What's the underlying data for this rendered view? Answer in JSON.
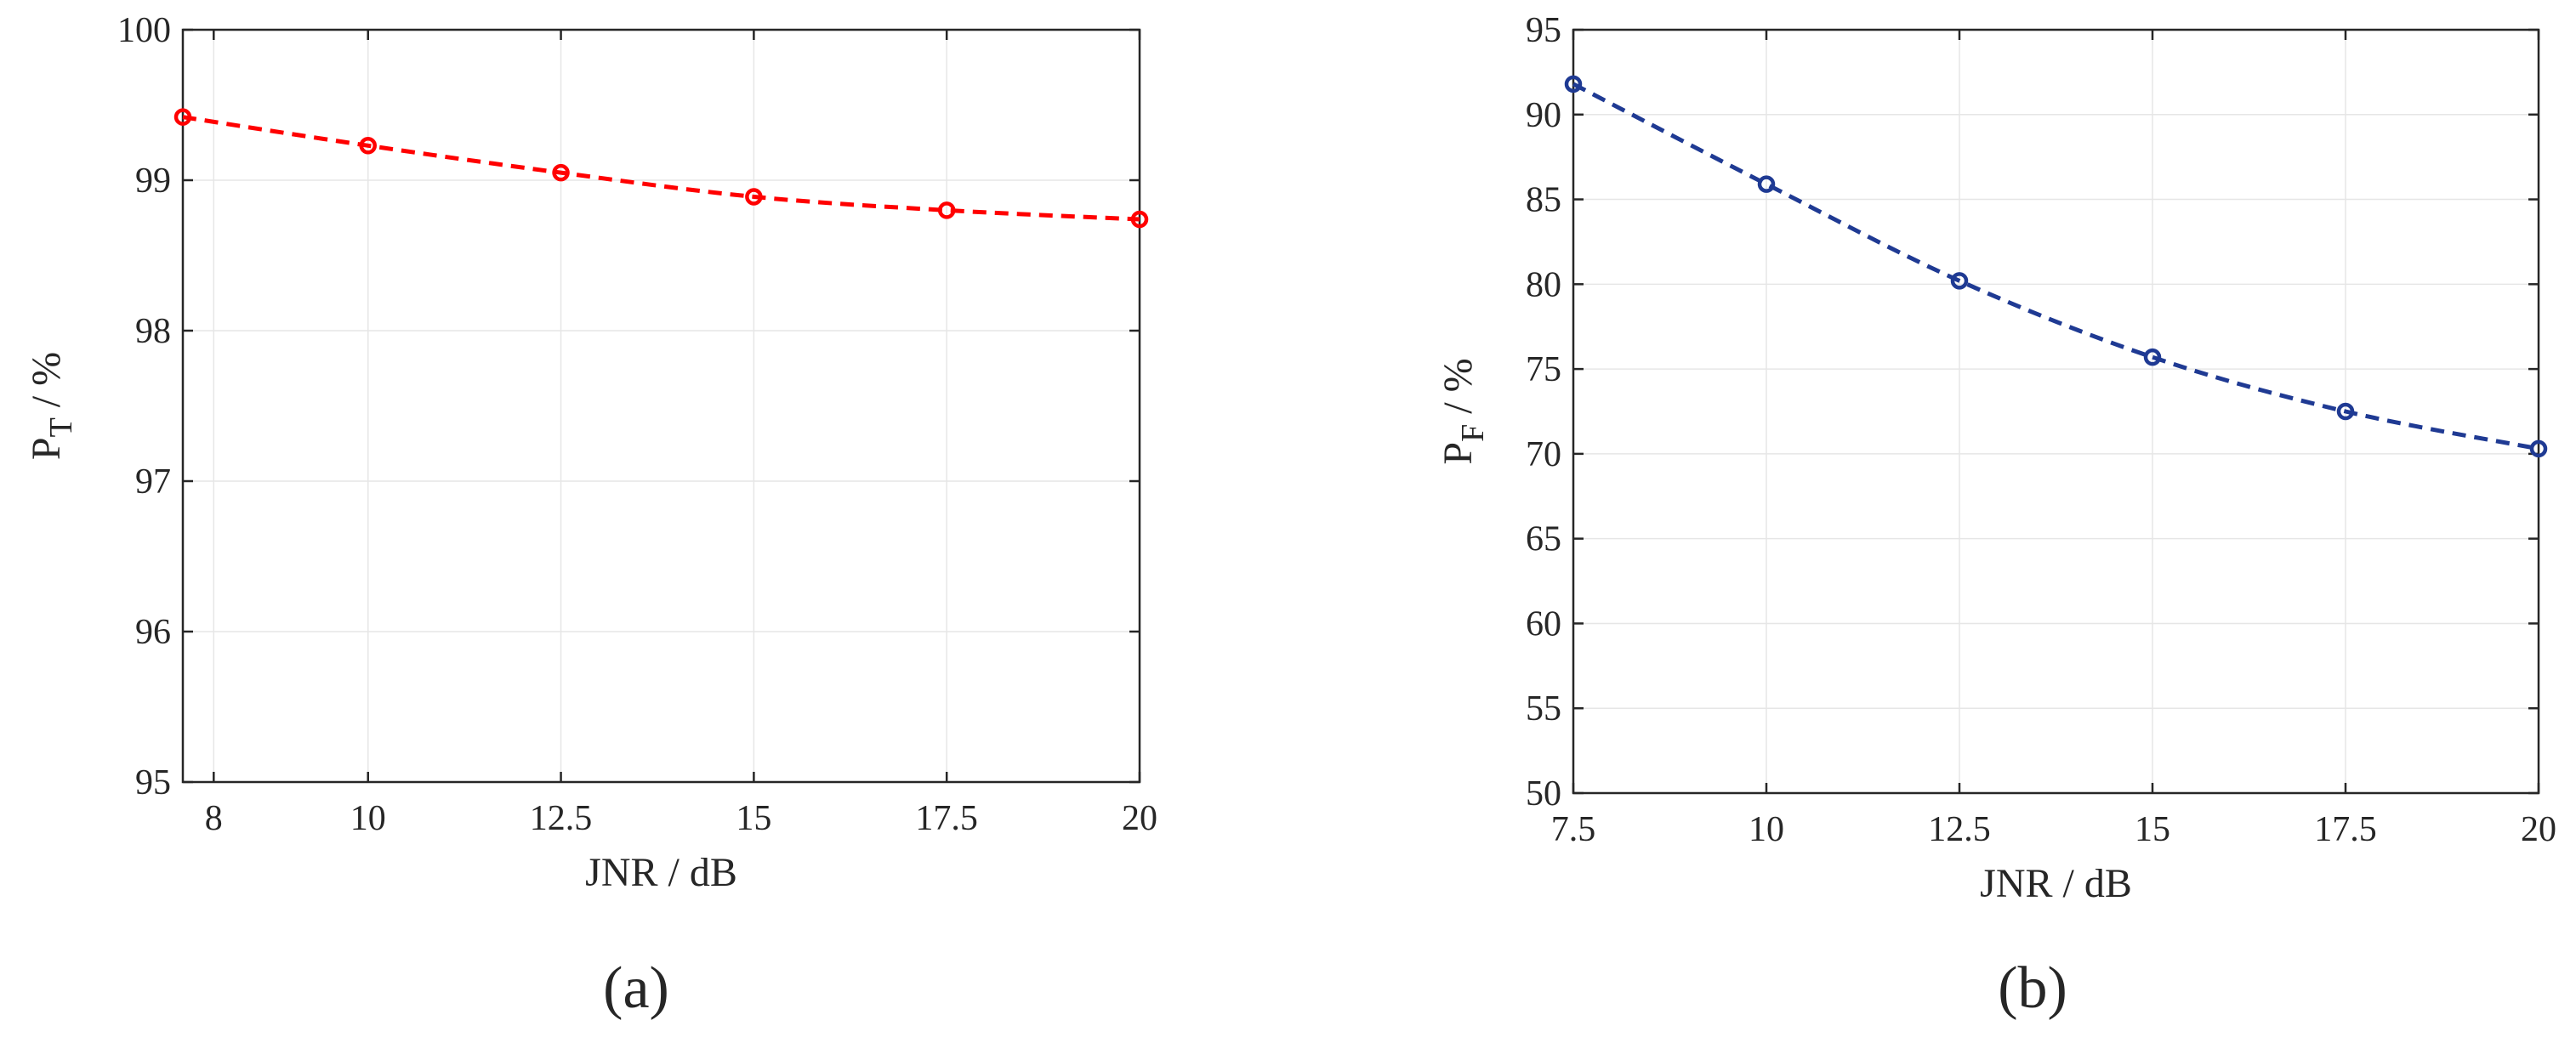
{
  "chart_data": [
    {
      "type": "line",
      "panel_label": "(a)",
      "xlabel": "JNR / dB",
      "ylabel": {
        "main": "P",
        "sub": "T",
        "rest": " / %"
      },
      "xlim": [
        7.6,
        20
      ],
      "ylim": [
        95,
        100
      ],
      "xticks": [
        8,
        10,
        12.5,
        15,
        17.5,
        20
      ],
      "xtick_labels": [
        "8",
        "10",
        "12.5",
        "15",
        "17.5",
        "20"
      ],
      "yticks": [
        95,
        96,
        97,
        98,
        99,
        100
      ],
      "ytick_labels": [
        "95",
        "96",
        "97",
        "98",
        "99",
        "100"
      ],
      "grid": true,
      "series": [
        {
          "color": "#ff0000",
          "line_style": "dashed",
          "marker": "circle-open",
          "x": [
            7.6,
            10,
            12.5,
            15,
            17.5,
            20
          ],
          "y": [
            99.42,
            99.23,
            99.05,
            98.89,
            98.8,
            98.74
          ]
        }
      ]
    },
    {
      "type": "line",
      "panel_label": "(b)",
      "xlabel": "JNR / dB",
      "ylabel": {
        "main": "P",
        "sub": "F",
        "rest": " / %"
      },
      "xlim": [
        7.5,
        20
      ],
      "ylim": [
        50,
        95
      ],
      "xticks": [
        7.5,
        10,
        12.5,
        15,
        17.5,
        20
      ],
      "xtick_labels": [
        "7.5",
        "10",
        "12.5",
        "15",
        "17.5",
        "20"
      ],
      "yticks": [
        50,
        55,
        60,
        65,
        70,
        75,
        80,
        85,
        90,
        95
      ],
      "ytick_labels": [
        "50",
        "55",
        "60",
        "65",
        "70",
        "75",
        "80",
        "85",
        "90",
        "95"
      ],
      "grid": true,
      "series": [
        {
          "color": "#1f3a93",
          "line_style": "dashed",
          "marker": "circle-open",
          "x": [
            7.5,
            10,
            12.5,
            15,
            17.5,
            20
          ],
          "y": [
            91.8,
            85.9,
            80.2,
            75.7,
            72.5,
            70.3
          ]
        }
      ]
    }
  ]
}
